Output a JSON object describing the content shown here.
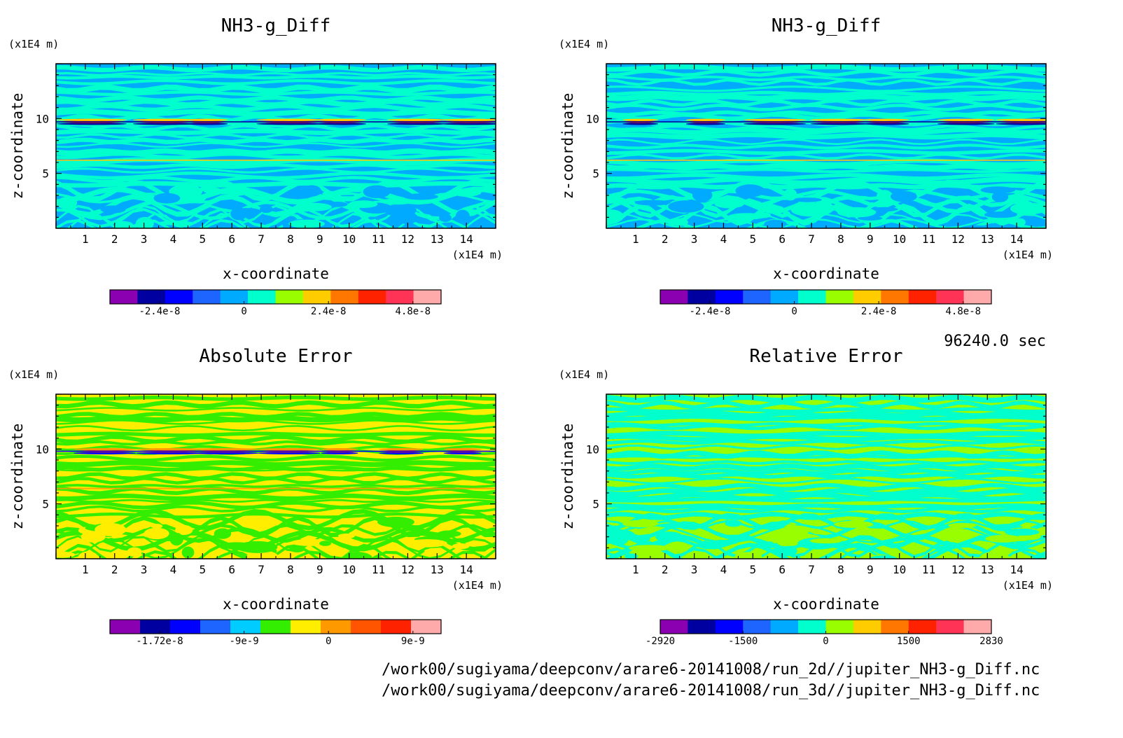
{
  "time_label": "96240.0 sec",
  "files": [
    "/work00/sugiyama/deepconv/arare6-20141008/run_2d//jupiter_NH3-g_Diff.nc",
    "/work00/sugiyama/deepconv/arare6-20141008/run_3d//jupiter_NH3-g_Diff.nc"
  ],
  "chart_data": [
    {
      "type": "heatmap",
      "title": "NH3-g_Diff",
      "xlabel": "x-coordinate",
      "ylabel": "z-coordinate",
      "x_unit": "(x1E4 m)",
      "y_unit": "(x1E4 m)",
      "xlim": [
        0,
        15
      ],
      "ylim": [
        0,
        15
      ],
      "x_ticks": [
        "1",
        "2",
        "3",
        "4",
        "5",
        "6",
        "7",
        "8",
        "9",
        "10",
        "11",
        "12",
        "13",
        "14"
      ],
      "y_ticks": [
        "5",
        "10"
      ],
      "colorbar": {
        "tick_labels": [
          "-2.4e-8",
          "0",
          "2.4e-8",
          "4.8e-8"
        ],
        "colors": [
          "#8b00b0",
          "#0000a0",
          "#0000ff",
          "#1e64ff",
          "#00aaff",
          "#00ffcc",
          "#99ff00",
          "#ffcc00",
          "#ff7700",
          "#ff2200",
          "#ff3355",
          "#ffaaaa"
        ]
      },
      "features": {
        "background": "#00aaff",
        "band_color": "#00ffcc",
        "peak_layer_z": 9.7,
        "peak_colors": [
          "#0000a0",
          "#ff2200",
          "#ffcc00"
        ],
        "secondary_layer_z": 6.2
      }
    },
    {
      "type": "heatmap",
      "title": "NH3-g_Diff",
      "xlabel": "x-coordinate",
      "ylabel": "z-coordinate",
      "x_unit": "(x1E4 m)",
      "y_unit": "(x1E4 m)",
      "xlim": [
        0,
        15
      ],
      "ylim": [
        0,
        15
      ],
      "x_ticks": [
        "1",
        "2",
        "3",
        "4",
        "5",
        "6",
        "7",
        "8",
        "9",
        "10",
        "11",
        "12",
        "13",
        "14"
      ],
      "y_ticks": [
        "5",
        "10"
      ],
      "colorbar": {
        "tick_labels": [
          "-2.4e-8",
          "0",
          "2.4e-8",
          "4.8e-8"
        ],
        "colors": [
          "#8b00b0",
          "#0000a0",
          "#0000ff",
          "#1e64ff",
          "#00aaff",
          "#00ffcc",
          "#99ff00",
          "#ffcc00",
          "#ff7700",
          "#ff2200",
          "#ff3355",
          "#ffaaaa"
        ]
      },
      "features": {
        "background": "#00aaff",
        "band_color": "#00ffcc",
        "peak_layer_z": 9.7,
        "peak_colors": [
          "#0000a0",
          "#ff2200",
          "#ffcc00"
        ],
        "secondary_layer_z": 6.2
      }
    },
    {
      "type": "heatmap",
      "title": "Absolute Error",
      "xlabel": "x-coordinate",
      "ylabel": "z-coordinate",
      "x_unit": "(x1E4 m)",
      "y_unit": "(x1E4 m)",
      "xlim": [
        0,
        15
      ],
      "ylim": [
        0,
        15
      ],
      "x_ticks": [
        "1",
        "2",
        "3",
        "4",
        "5",
        "6",
        "7",
        "8",
        "9",
        "10",
        "11",
        "12",
        "13",
        "14"
      ],
      "y_ticks": [
        "5",
        "10"
      ],
      "colorbar": {
        "tick_labels": [
          "-1.72e-8",
          "-9e-9",
          "0",
          "9e-9"
        ],
        "colors": [
          "#8b00b0",
          "#0000a0",
          "#0000ff",
          "#1e64ff",
          "#00ccff",
          "#33ee00",
          "#ffee00",
          "#ff9900",
          "#ff5500",
          "#ff2200",
          "#ffaaaa"
        ]
      },
      "features": {
        "background": "#ffee00",
        "band_color": "#33ee00",
        "peak_layer_z": 9.8,
        "peak_colors": [
          "#0000ff",
          "#ff2200",
          "#ff9900"
        ],
        "secondary_layer_z": 6.4
      }
    },
    {
      "type": "heatmap",
      "title": "Relative Error",
      "xlabel": "x-coordinate",
      "ylabel": "z-coordinate",
      "x_unit": "(x1E4 m)",
      "y_unit": "(x1E4 m)",
      "xlim": [
        0,
        15
      ],
      "ylim": [
        0,
        15
      ],
      "x_ticks": [
        "1",
        "2",
        "3",
        "4",
        "5",
        "6",
        "7",
        "8",
        "9",
        "10",
        "11",
        "12",
        "13",
        "14"
      ],
      "y_ticks": [
        "5",
        "10"
      ],
      "colorbar": {
        "tick_labels": [
          "-2920",
          "-1500",
          "0",
          "1500",
          "2830"
        ],
        "colors": [
          "#8b00b0",
          "#0000a0",
          "#0000ff",
          "#1e64ff",
          "#00aaff",
          "#00ffcc",
          "#99ff00",
          "#ffcc00",
          "#ff7700",
          "#ff2200",
          "#ff3355",
          "#ffaaaa"
        ]
      },
      "features": {
        "background": "#99ff00",
        "band_color": "#00ffcc",
        "peak_layer_z": null,
        "peak_colors": [],
        "secondary_layer_z": null
      }
    }
  ]
}
